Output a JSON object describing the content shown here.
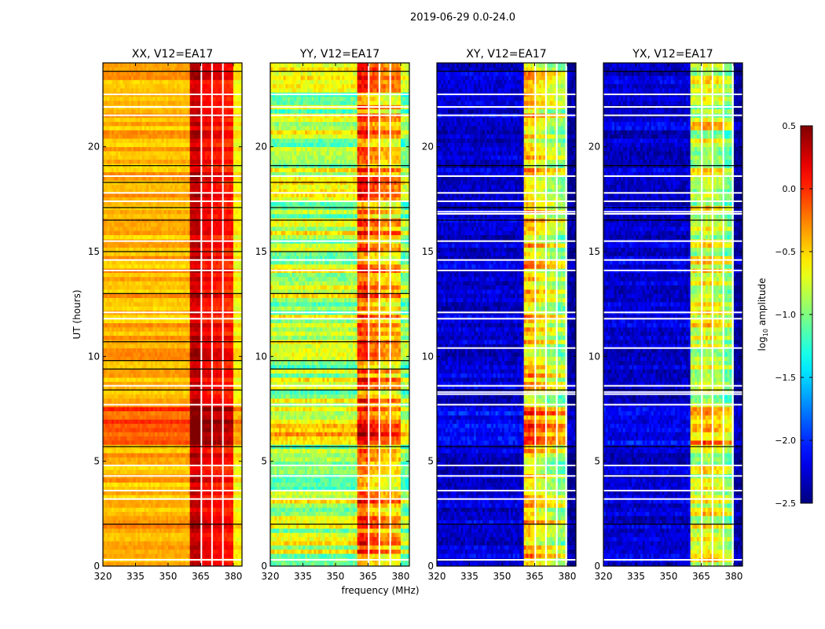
{
  "figure": {
    "suptitle": "2019-06-29 0.0-24.0",
    "ylabel": "UT (hours)",
    "xlabel": "frequency (MHz)"
  },
  "colorbar": {
    "label_base": "log",
    "label_sub": "10",
    "label_rest": " amplitude",
    "vmin": -2.5,
    "vmax": 0.5,
    "ticks": [
      0.5,
      0.0,
      -0.5,
      -1.0,
      -1.5,
      -2.0,
      -2.5
    ],
    "tick_labels": [
      "0.5",
      "0.0",
      "−0.5",
      "−1.0",
      "−1.5",
      "−2.0",
      "−2.5"
    ],
    "colormap": "jet"
  },
  "chart_data": [
    {
      "type": "heatmap",
      "title": "XX, V12=EA17",
      "xlim": [
        320,
        384
      ],
      "ylim": [
        0,
        24
      ],
      "xticks": [
        320,
        335,
        350,
        365,
        380
      ],
      "xtick_labels": [
        "320",
        "335",
        "350",
        "365",
        "380"
      ],
      "yticks": [
        0,
        5,
        10,
        15,
        20
      ],
      "ytick_labels": [
        "0",
        "5",
        "10",
        "15",
        "20"
      ],
      "bands": [
        {
          "f": [
            320,
            360.5
          ],
          "level": -0.4
        },
        {
          "f": [
            360.5,
            365.3
          ],
          "level": 0.3
        },
        {
          "f": [
            365.3,
            370.2
          ],
          "level": 0.15
        },
        {
          "f": [
            370.2,
            375.2
          ],
          "level": 0.1
        },
        {
          "f": [
            375.2,
            380
          ],
          "level": 0.05
        },
        {
          "f": [
            380,
            384
          ],
          "level": -0.6
        }
      ],
      "flagged_channels_mhz": [
        365.3,
        370.2,
        375.2
      ],
      "enhanced_hours": [
        {
          "t": [
            5.7,
            7.5
          ],
          "delta": 0.3
        }
      ],
      "noise": 0.12,
      "black_rows_hours": [
        2.0,
        5.7,
        8.4,
        9.4,
        9.8,
        10.7,
        13.0,
        15.0,
        16.5,
        17.1,
        18.3,
        19.1,
        23.6
      ],
      "white_rows_hours": [
        0.3,
        3.2,
        3.6,
        4.3,
        4.8,
        7.7,
        8.6,
        11.8,
        12.1,
        14.1,
        14.6,
        15.5,
        17.4,
        17.8,
        18.6,
        21.5,
        21.9,
        22.5
      ]
    },
    {
      "type": "heatmap",
      "title": "YY, V12=EA17",
      "xlim": [
        320,
        384
      ],
      "ylim": [
        0,
        24
      ],
      "xticks": [
        320,
        335,
        350,
        365,
        380
      ],
      "xtick_labels": [
        "320",
        "335",
        "350",
        "365",
        "380"
      ],
      "yticks": [
        0,
        5,
        10,
        15,
        20
      ],
      "ytick_labels": [
        "0",
        "5",
        "10",
        "15",
        "20"
      ],
      "bands": [
        {
          "f": [
            320,
            360.5
          ],
          "level": -0.85
        },
        {
          "f": [
            360.5,
            365.3
          ],
          "level": -0.1
        },
        {
          "f": [
            365.3,
            370.2
          ],
          "level": -0.3
        },
        {
          "f": [
            370.2,
            375.2
          ],
          "level": -0.45
        },
        {
          "f": [
            375.2,
            380
          ],
          "level": -0.45
        },
        {
          "f": [
            380,
            384
          ],
          "level": -0.95
        }
      ],
      "flagged_channels_mhz": [
        365.3,
        370.2,
        375.2
      ],
      "enhanced_hours": [
        {
          "t": [
            5.7,
            7.5
          ],
          "delta": 0.3
        }
      ],
      "noise": 0.3,
      "black_rows_hours": [
        2.0,
        5.7,
        8.4,
        9.4,
        9.8,
        10.7,
        13.0,
        15.0,
        16.5,
        17.1,
        18.3,
        19.1,
        23.6
      ],
      "white_rows_hours": [
        0.3,
        3.2,
        3.6,
        4.3,
        4.8,
        7.7,
        8.6,
        11.8,
        12.1,
        14.1,
        14.6,
        15.5,
        17.4,
        17.8,
        18.6,
        21.5,
        21.9,
        22.5
      ]
    },
    {
      "type": "heatmap",
      "title": "XY, V12=EA17",
      "xlim": [
        320,
        384
      ],
      "ylim": [
        0,
        24
      ],
      "xticks": [
        320,
        335,
        350,
        365,
        380
      ],
      "xtick_labels": [
        "320",
        "335",
        "350",
        "365",
        "380"
      ],
      "yticks": [
        0,
        5,
        10,
        15,
        20
      ],
      "ytick_labels": [
        "0",
        "5",
        "10",
        "15",
        "20"
      ],
      "bands": [
        {
          "f": [
            320,
            360.5
          ],
          "level": -2.25
        },
        {
          "f": [
            360.5,
            365.3
          ],
          "level": -0.45
        },
        {
          "f": [
            365.3,
            370.2
          ],
          "level": -0.6
        },
        {
          "f": [
            370.2,
            375.2
          ],
          "level": -0.75
        },
        {
          "f": [
            375.2,
            380
          ],
          "level": -0.85
        },
        {
          "f": [
            380,
            384
          ],
          "level": -2.4
        }
      ],
      "flagged_channels_mhz": [
        365.3,
        370.2,
        375.2,
        379.5
      ],
      "enhanced_hours": [
        {
          "t": [
            5.7,
            7.5
          ],
          "delta": 0.35
        }
      ],
      "noise": 0.3,
      "black_rows_hours": [
        2.0,
        5.7,
        8.4,
        16.5,
        17.1,
        19.1,
        23.6
      ],
      "white_rows_hours": [
        0.3,
        3.2,
        3.6,
        4.3,
        4.8,
        7.7,
        8.2,
        8.3,
        8.6,
        10.4,
        11.8,
        12.1,
        14.1,
        14.6,
        15.5,
        16.8,
        16.9,
        17.4,
        17.8,
        18.6,
        21.5,
        21.9,
        22.5
      ]
    },
    {
      "type": "heatmap",
      "title": "YX, V12=EA17",
      "xlim": [
        320,
        384
      ],
      "ylim": [
        0,
        24
      ],
      "xticks": [
        320,
        335,
        350,
        365,
        380
      ],
      "xtick_labels": [
        "320",
        "335",
        "350",
        "365",
        "380"
      ],
      "yticks": [
        0,
        5,
        10,
        15,
        20
      ],
      "ytick_labels": [
        "0",
        "5",
        "10",
        "15",
        "20"
      ],
      "bands": [
        {
          "f": [
            320,
            360.5
          ],
          "level": -2.25
        },
        {
          "f": [
            360.5,
            365.3
          ],
          "level": -0.75
        },
        {
          "f": [
            365.3,
            370.2
          ],
          "level": -0.65
        },
        {
          "f": [
            370.2,
            375.2
          ],
          "level": -0.75
        },
        {
          "f": [
            375.2,
            380
          ],
          "level": -0.9
        },
        {
          "f": [
            380,
            384
          ],
          "level": -2.4
        }
      ],
      "flagged_channels_mhz": [
        365.3,
        370.2,
        375.2,
        379.5
      ],
      "enhanced_hours": [
        {
          "t": [
            5.7,
            7.5
          ],
          "delta": 0.35
        }
      ],
      "noise": 0.3,
      "black_rows_hours": [
        2.0,
        5.7,
        8.4,
        16.5,
        17.1,
        19.1,
        23.6
      ],
      "white_rows_hours": [
        0.3,
        3.2,
        3.6,
        4.3,
        4.8,
        7.7,
        8.2,
        8.3,
        8.6,
        10.4,
        11.8,
        12.1,
        14.1,
        14.6,
        15.5,
        16.8,
        16.9,
        17.4,
        17.8,
        18.6,
        21.5,
        21.9,
        22.5
      ]
    }
  ]
}
